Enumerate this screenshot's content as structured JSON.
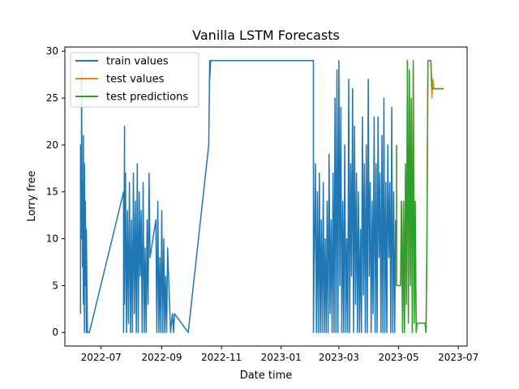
{
  "chart_data": {
    "type": "line",
    "title": "Vanilla LSTM Forecasts",
    "xlabel": "Date time",
    "ylabel": "Lorry free",
    "xlim": [
      "2022-05-25",
      "2023-07-10"
    ],
    "ylim": [
      -1.45,
      30.45
    ],
    "x_ticks": [
      {
        "date": "2022-07-01",
        "label": "2022-07"
      },
      {
        "date": "2022-09-01",
        "label": "2022-09"
      },
      {
        "date": "2022-11-01",
        "label": "2022-11"
      },
      {
        "date": "2023-01-01",
        "label": "2023-01"
      },
      {
        "date": "2023-03-01",
        "label": "2023-03"
      },
      {
        "date": "2023-05-01",
        "label": "2023-05"
      },
      {
        "date": "2023-07-01",
        "label": "2023-07"
      }
    ],
    "y_ticks": [
      0,
      5,
      10,
      15,
      20,
      25,
      30
    ],
    "grid": false,
    "legend": {
      "position": "top-left",
      "entries": [
        "train values",
        "test values",
        "test predictions"
      ]
    },
    "colors": {
      "train": "#1f77b4",
      "test": "#ff7f0e",
      "pred": "#2ca02c"
    },
    "series": [
      {
        "name": "train values",
        "color": "#1f77b4",
        "x": [
          "2022-06-10",
          "2022-06-10",
          "2022-06-11",
          "2022-06-11",
          "2022-06-12",
          "2022-06-12",
          "2022-06-13",
          "2022-06-13",
          "2022-06-14",
          "2022-06-14",
          "2022-06-15",
          "2022-06-15",
          "2022-06-16",
          "2022-06-16",
          "2022-06-17",
          "2022-06-19",
          "2022-07-24",
          "2022-07-24",
          "2022-07-25",
          "2022-07-25",
          "2022-07-26",
          "2022-07-27",
          "2022-07-28",
          "2022-07-29",
          "2022-07-30",
          "2022-07-31",
          "2022-08-01",
          "2022-08-02",
          "2022-08-03",
          "2022-08-04",
          "2022-08-05",
          "2022-08-06",
          "2022-08-07",
          "2022-08-08",
          "2022-08-09",
          "2022-08-10",
          "2022-08-11",
          "2022-08-12",
          "2022-08-13",
          "2022-08-14",
          "2022-08-15",
          "2022-08-16",
          "2022-08-17",
          "2022-08-18",
          "2022-08-19",
          "2022-08-20",
          "2022-08-26",
          "2022-08-27",
          "2022-08-28",
          "2022-08-29",
          "2022-08-30",
          "2022-08-31",
          "2022-09-01",
          "2022-09-02",
          "2022-09-03",
          "2022-09-04",
          "2022-09-05",
          "2022-09-06",
          "2022-09-07",
          "2022-09-10",
          "2022-09-12",
          "2022-09-13",
          "2022-09-14",
          "2022-09-28",
          "2022-10-19",
          "2022-10-20",
          "2022-10-20",
          "2022-10-21",
          "2023-02-03",
          "2023-02-03",
          "2023-02-05",
          "2023-02-06",
          "2023-02-07",
          "2023-02-08",
          "2023-02-09",
          "2023-02-10",
          "2023-02-11",
          "2023-02-12",
          "2023-02-13",
          "2023-02-14",
          "2023-02-15",
          "2023-02-16",
          "2023-02-17",
          "2023-02-18",
          "2023-02-19",
          "2023-02-20",
          "2023-02-21",
          "2023-02-22",
          "2023-02-23",
          "2023-02-24",
          "2023-02-25",
          "2023-02-26",
          "2023-02-27",
          "2023-02-28",
          "2023-03-01",
          "2023-03-02",
          "2023-03-03",
          "2023-03-04",
          "2023-03-05",
          "2023-03-06",
          "2023-03-07",
          "2023-03-08",
          "2023-03-09",
          "2023-03-10",
          "2023-03-11",
          "2023-03-12",
          "2023-03-13",
          "2023-03-14",
          "2023-03-15",
          "2023-03-16",
          "2023-03-17",
          "2023-03-18",
          "2023-03-19",
          "2023-03-20",
          "2023-03-21",
          "2023-03-22",
          "2023-03-23",
          "2023-03-24",
          "2023-03-25",
          "2023-03-26",
          "2023-03-27",
          "2023-03-28",
          "2023-03-29",
          "2023-03-30",
          "2023-03-31",
          "2023-04-01",
          "2023-04-02",
          "2023-04-03",
          "2023-04-04",
          "2023-04-05",
          "2023-04-06",
          "2023-04-07",
          "2023-04-08",
          "2023-04-09",
          "2023-04-10",
          "2023-04-11",
          "2023-04-12",
          "2023-04-13",
          "2023-04-14",
          "2023-04-15",
          "2023-04-16",
          "2023-04-17",
          "2023-04-18",
          "2023-04-19",
          "2023-04-20",
          "2023-04-21",
          "2023-04-22",
          "2023-04-23",
          "2023-04-24",
          "2023-04-25",
          "2023-04-26",
          "2023-04-27",
          "2023-04-28"
        ],
        "values": [
          2,
          20,
          10,
          28,
          7,
          16,
          3,
          21,
          0,
          18,
          5,
          14,
          0,
          11,
          0,
          0,
          15,
          0,
          22,
          3,
          17,
          0,
          13,
          1,
          16,
          0,
          12,
          0,
          17,
          2,
          14,
          0,
          18,
          0,
          15,
          6,
          13,
          0,
          16,
          0,
          9,
          0,
          12,
          3,
          17,
          8,
          12,
          0,
          14,
          0,
          8,
          0,
          13,
          0,
          10,
          0,
          6,
          0,
          9,
          0,
          2,
          0,
          2,
          0,
          20,
          29,
          27,
          29,
          29,
          0,
          18,
          0,
          15,
          0,
          17,
          0,
          12,
          0,
          16,
          0,
          10,
          0,
          14,
          0,
          19,
          2,
          12,
          0,
          17,
          0,
          25,
          0,
          28,
          0,
          29,
          5,
          24,
          0,
          14,
          0,
          20,
          0,
          10,
          0,
          27,
          0,
          18,
          6,
          26,
          0,
          22,
          3,
          17,
          0,
          15,
          0,
          11,
          0,
          23,
          4,
          18,
          0,
          20,
          0,
          27,
          6,
          16,
          0,
          14,
          2,
          23,
          0,
          18,
          0,
          23,
          8,
          17,
          0,
          21,
          0,
          25,
          0,
          16,
          0,
          20,
          8,
          16,
          0,
          24,
          0,
          15,
          0,
          12
        ]
      },
      {
        "name": "test values",
        "color": "#ff7f0e",
        "x": [
          "2023-04-29",
          "2023-04-29",
          "2023-04-30",
          "2023-05-01",
          "2023-05-02",
          "2023-05-03",
          "2023-05-04",
          "2023-05-05",
          "2023-05-06",
          "2023-05-07",
          "2023-05-08",
          "2023-05-09",
          "2023-05-10",
          "2023-05-11",
          "2023-05-12",
          "2023-05-13",
          "2023-05-14",
          "2023-05-15",
          "2023-05-16",
          "2023-05-17",
          "2023-05-18",
          "2023-05-19",
          "2023-05-20",
          "2023-05-21",
          "2023-05-22",
          "2023-05-23",
          "2023-05-24",
          "2023-05-25",
          "2023-05-26",
          "2023-05-27",
          "2023-05-28",
          "2023-05-29",
          "2023-05-30",
          "2023-05-31",
          "2023-06-01",
          "2023-06-02",
          "2023-06-03",
          "2023-06-04",
          "2023-06-05",
          "2023-06-06",
          "2023-06-07",
          "2023-06-08",
          "2023-06-10",
          "2023-06-12",
          "2023-06-14",
          "2023-06-16"
        ],
        "values": [
          20,
          5,
          5,
          5,
          5,
          5,
          14,
          1,
          13,
          0,
          17,
          4,
          29,
          2,
          27,
          6,
          24,
          0,
          28,
          2,
          14,
          1,
          1,
          1,
          1,
          1,
          1,
          1,
          1,
          1,
          1,
          0,
          11,
          29,
          29,
          29,
          29,
          25,
          27,
          26,
          26,
          26,
          26,
          26,
          26,
          26
        ]
      },
      {
        "name": "test predictions",
        "color": "#2ca02c",
        "x": [
          "2023-04-29",
          "2023-04-29",
          "2023-04-30",
          "2023-05-01",
          "2023-05-02",
          "2023-05-03",
          "2023-05-04",
          "2023-05-05",
          "2023-05-06",
          "2023-05-07",
          "2023-05-08",
          "2023-05-09",
          "2023-05-10",
          "2023-05-11",
          "2023-05-12",
          "2023-05-13",
          "2023-05-14",
          "2023-05-15",
          "2023-05-16",
          "2023-05-17",
          "2023-05-18",
          "2023-05-19",
          "2023-05-20",
          "2023-05-21",
          "2023-05-22",
          "2023-05-23",
          "2023-05-24",
          "2023-05-25",
          "2023-05-26",
          "2023-05-27",
          "2023-05-28",
          "2023-05-29",
          "2023-05-30",
          "2023-05-31",
          "2023-06-01",
          "2023-06-02",
          "2023-06-03",
          "2023-06-04",
          "2023-06-05",
          "2023-06-06",
          "2023-06-07",
          "2023-06-08",
          "2023-06-10",
          "2023-06-12",
          "2023-06-14",
          "2023-06-16"
        ],
        "values": [
          20,
          5,
          5,
          5,
          5,
          5,
          14,
          0,
          14,
          0,
          18,
          3,
          29,
          1,
          28,
          5,
          25,
          0,
          29,
          1,
          14,
          0,
          1,
          1,
          1,
          1,
          1,
          1,
          1,
          1,
          1,
          0,
          9,
          29,
          29,
          29,
          29,
          26,
          26,
          26,
          26,
          26,
          26,
          26,
          26,
          26
        ]
      }
    ]
  }
}
